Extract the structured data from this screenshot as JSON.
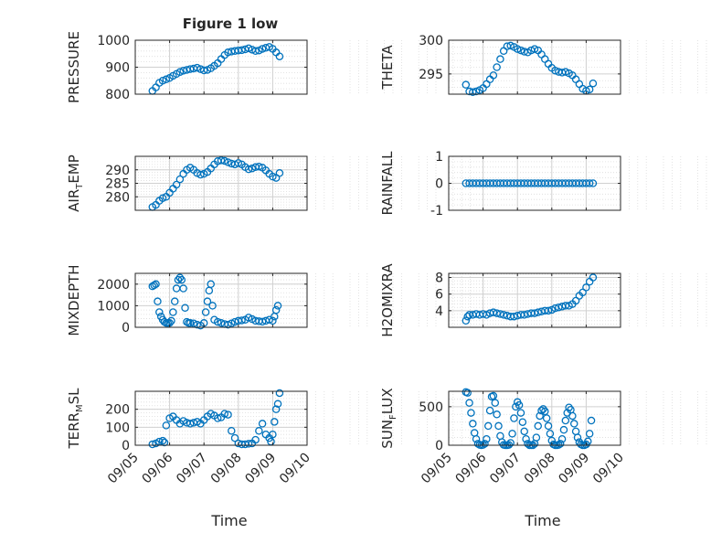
{
  "figure_title": "Figure 1 low",
  "xlabels": [
    "Time",
    "Time"
  ],
  "chart_data": [
    {
      "type": "scatter",
      "ylabel": "PRESSURE",
      "ylim": [
        800,
        1000
      ],
      "yticks": [
        "800",
        "900",
        "1000"
      ],
      "xticks": [],
      "grid": "on",
      "color": "#0072bd",
      "x": [
        5.5,
        5.6,
        5.7,
        5.8,
        5.9,
        6.0,
        6.1,
        6.2,
        6.3,
        6.4,
        6.5,
        6.6,
        6.7,
        6.8,
        6.9,
        7.0,
        7.1,
        7.2,
        7.3,
        7.4,
        7.5,
        7.6,
        7.7,
        7.8,
        7.9,
        8.0,
        8.1,
        8.2,
        8.3,
        8.4,
        8.5,
        8.6,
        8.7,
        8.8,
        8.9,
        9.0,
        9.1,
        9.2
      ],
      "y": [
        812,
        825,
        842,
        850,
        855,
        860,
        868,
        875,
        882,
        887,
        890,
        893,
        895,
        898,
        893,
        888,
        890,
        896,
        905,
        915,
        930,
        945,
        955,
        958,
        960,
        962,
        963,
        966,
        970,
        965,
        960,
        962,
        968,
        972,
        975,
        968,
        955,
        940
      ]
    },
    {
      "type": "scatter",
      "ylabel": "THETA",
      "ylim": [
        292,
        300
      ],
      "yticks": [
        "295",
        "300"
      ],
      "xticks": [],
      "grid": "on",
      "color": "#0072bd",
      "x": [
        5.5,
        5.6,
        5.7,
        5.8,
        5.9,
        6.0,
        6.1,
        6.2,
        6.3,
        6.4,
        6.5,
        6.6,
        6.7,
        6.8,
        6.9,
        7.0,
        7.1,
        7.2,
        7.3,
        7.4,
        7.5,
        7.6,
        7.7,
        7.8,
        7.9,
        8.0,
        8.1,
        8.2,
        8.3,
        8.4,
        8.5,
        8.6,
        8.7,
        8.8,
        8.9,
        9.0,
        9.1,
        9.2
      ],
      "y": [
        293.4,
        292.4,
        292.3,
        292.4,
        292.6,
        292.9,
        293.5,
        294.2,
        294.8,
        296.0,
        297.2,
        298.4,
        299.1,
        299.2,
        299.0,
        298.7,
        298.5,
        298.3,
        298.2,
        298.5,
        298.7,
        298.5,
        297.9,
        297.2,
        296.5,
        295.9,
        295.5,
        295.3,
        295.2,
        295.3,
        295.1,
        294.8,
        294.2,
        293.5,
        292.8,
        292.5,
        292.7,
        293.6
      ]
    },
    {
      "type": "scatter",
      "ylabel": "AIR",
      "ylabel_sub": "T",
      "ylabel_rest": "EMP",
      "ylim": [
        275,
        295
      ],
      "yticks": [
        "280",
        "285",
        "290"
      ],
      "xticks": [],
      "grid": "on",
      "color": "#0072bd",
      "x": [
        5.5,
        5.6,
        5.7,
        5.8,
        5.9,
        6.0,
        6.1,
        6.2,
        6.3,
        6.4,
        6.5,
        6.6,
        6.7,
        6.8,
        6.9,
        7.0,
        7.1,
        7.2,
        7.3,
        7.4,
        7.5,
        7.6,
        7.7,
        7.8,
        7.9,
        8.0,
        8.1,
        8.2,
        8.3,
        8.4,
        8.5,
        8.6,
        8.7,
        8.8,
        8.9,
        9.0,
        9.1,
        9.2
      ],
      "y": [
        276.2,
        277.0,
        278.5,
        279.5,
        280.0,
        281.5,
        283.0,
        284.5,
        286.5,
        288.5,
        290.0,
        290.8,
        290.0,
        288.8,
        288.2,
        288.5,
        289.2,
        290.5,
        292.0,
        293.2,
        293.5,
        293.3,
        292.8,
        292.3,
        292.0,
        292.5,
        292.0,
        291.0,
        290.2,
        290.5,
        291.0,
        291.2,
        290.8,
        289.8,
        288.5,
        287.5,
        287.0,
        288.8
      ]
    },
    {
      "type": "scatter",
      "ylabel": "RAINFALL",
      "ylim": [
        -1,
        1
      ],
      "yticks": [
        "-1",
        "0",
        "1"
      ],
      "xticks": [],
      "grid": "on",
      "color": "#0072bd",
      "x": [
        5.5,
        5.6,
        5.7,
        5.8,
        5.9,
        6.0,
        6.1,
        6.2,
        6.3,
        6.4,
        6.5,
        6.6,
        6.7,
        6.8,
        6.9,
        7.0,
        7.1,
        7.2,
        7.3,
        7.4,
        7.5,
        7.6,
        7.7,
        7.8,
        7.9,
        8.0,
        8.1,
        8.2,
        8.3,
        8.4,
        8.5,
        8.6,
        8.7,
        8.8,
        8.9,
        9.0,
        9.1,
        9.2
      ],
      "y": [
        0,
        0,
        0,
        0,
        0,
        0,
        0,
        0,
        0,
        0,
        0,
        0,
        0,
        0,
        0,
        0,
        0,
        0,
        0,
        0,
        0,
        0,
        0,
        0,
        0,
        0,
        0,
        0,
        0,
        0,
        0,
        0,
        0,
        0,
        0,
        0,
        0,
        0
      ]
    },
    {
      "type": "scatter",
      "ylabel": "MIXDEPTH",
      "ylim": [
        0,
        2500
      ],
      "yticks": [
        "0",
        "1000",
        "2000"
      ],
      "xticks": [],
      "grid": "on",
      "color": "#0072bd",
      "x": [
        5.5,
        5.55,
        5.6,
        5.65,
        5.7,
        5.75,
        5.8,
        5.85,
        5.9,
        5.95,
        6.0,
        6.05,
        6.1,
        6.15,
        6.2,
        6.25,
        6.3,
        6.35,
        6.4,
        6.45,
        6.5,
        6.55,
        6.6,
        6.7,
        6.8,
        6.9,
        7.0,
        7.05,
        7.1,
        7.15,
        7.2,
        7.25,
        7.3,
        7.4,
        7.5,
        7.6,
        7.7,
        7.8,
        7.9,
        8.0,
        8.1,
        8.2,
        8.3,
        8.4,
        8.5,
        8.6,
        8.7,
        8.8,
        8.9,
        9.0,
        9.05,
        9.1,
        9.15
      ],
      "y": [
        1900,
        1950,
        2000,
        1200,
        700,
        500,
        350,
        250,
        200,
        200,
        200,
        300,
        700,
        1200,
        1800,
        2200,
        2300,
        2200,
        1800,
        900,
        250,
        200,
        200,
        180,
        120,
        80,
        200,
        700,
        1200,
        1700,
        2000,
        1000,
        350,
        250,
        200,
        150,
        120,
        180,
        250,
        300,
        320,
        350,
        450,
        380,
        300,
        280,
        260,
        300,
        350,
        300,
        500,
        800,
        1000
      ]
    },
    {
      "type": "scatter",
      "ylabel": "H2OMIXRA",
      "ylim": [
        2,
        8.5
      ],
      "yticks": [
        "4",
        "6",
        "8"
      ],
      "xticks": [],
      "grid": "on",
      "color": "#0072bd",
      "x": [
        5.5,
        5.55,
        5.6,
        5.7,
        5.8,
        5.9,
        6.0,
        6.1,
        6.2,
        6.3,
        6.4,
        6.5,
        6.6,
        6.7,
        6.8,
        6.9,
        7.0,
        7.1,
        7.2,
        7.3,
        7.4,
        7.5,
        7.6,
        7.7,
        7.8,
        7.9,
        8.0,
        8.1,
        8.2,
        8.3,
        8.4,
        8.5,
        8.6,
        8.7,
        8.8,
        8.9,
        9.0,
        9.1,
        9.2
      ],
      "y": [
        2.8,
        3.3,
        3.5,
        3.5,
        3.6,
        3.5,
        3.6,
        3.5,
        3.7,
        3.8,
        3.7,
        3.6,
        3.5,
        3.4,
        3.3,
        3.3,
        3.4,
        3.5,
        3.5,
        3.6,
        3.7,
        3.7,
        3.8,
        3.9,
        4.0,
        4.0,
        4.1,
        4.3,
        4.4,
        4.5,
        4.6,
        4.6,
        4.8,
        5.2,
        5.8,
        6.2,
        6.8,
        7.5,
        8.0
      ]
    },
    {
      "type": "scatter",
      "ylabel": "TERR",
      "ylabel_sub": "M",
      "ylabel_rest": "SL",
      "ylim": [
        0,
        300
      ],
      "yticks": [
        "0",
        "100",
        "200"
      ],
      "xticks": [
        "09/05",
        "09/06",
        "09/07",
        "09/08",
        "09/09",
        "09/10"
      ],
      "grid": "on",
      "color": "#0072bd",
      "x": [
        5.5,
        5.6,
        5.7,
        5.8,
        5.85,
        5.9,
        6.0,
        6.1,
        6.2,
        6.3,
        6.4,
        6.5,
        6.6,
        6.7,
        6.8,
        6.9,
        7.0,
        7.1,
        7.2,
        7.3,
        7.4,
        7.5,
        7.6,
        7.7,
        7.8,
        7.9,
        8.0,
        8.1,
        8.2,
        8.3,
        8.4,
        8.5,
        8.6,
        8.7,
        8.8,
        8.9,
        8.95,
        9.0,
        9.05,
        9.1,
        9.15,
        9.2
      ],
      "y": [
        5,
        10,
        20,
        25,
        15,
        110,
        150,
        160,
        140,
        120,
        135,
        125,
        120,
        125,
        130,
        120,
        140,
        160,
        175,
        165,
        150,
        155,
        175,
        170,
        80,
        40,
        10,
        5,
        5,
        8,
        10,
        30,
        80,
        120,
        60,
        40,
        20,
        60,
        130,
        200,
        230,
        290
      ]
    },
    {
      "type": "scatter",
      "ylabel": "SUN",
      "ylabel_sub": "F",
      "ylabel_rest": "LUX",
      "ylim": [
        0,
        700
      ],
      "yticks": [
        "0",
        "500"
      ],
      "xticks": [
        "09/05",
        "09/06",
        "09/07",
        "09/08",
        "09/09",
        "09/10"
      ],
      "grid": "on",
      "color": "#0072bd",
      "x": [
        5.5,
        5.55,
        5.6,
        5.65,
        5.7,
        5.75,
        5.8,
        5.85,
        5.9,
        5.95,
        6.0,
        6.05,
        6.1,
        6.15,
        6.2,
        6.25,
        6.3,
        6.35,
        6.4,
        6.45,
        6.5,
        6.55,
        6.6,
        6.65,
        6.7,
        6.75,
        6.8,
        6.85,
        6.9,
        6.95,
        7.0,
        7.05,
        7.1,
        7.15,
        7.2,
        7.25,
        7.3,
        7.35,
        7.4,
        7.45,
        7.5,
        7.55,
        7.6,
        7.65,
        7.7,
        7.75,
        7.8,
        7.85,
        7.9,
        7.95,
        8.0,
        8.05,
        8.1,
        8.15,
        8.2,
        8.25,
        8.3,
        8.35,
        8.4,
        8.45,
        8.5,
        8.55,
        8.6,
        8.65,
        8.7,
        8.75,
        8.8,
        8.85,
        8.9,
        8.95,
        9.0,
        9.05,
        9.1,
        9.15
      ],
      "y": [
        690,
        680,
        550,
        420,
        280,
        160,
        80,
        20,
        5,
        0,
        5,
        20,
        80,
        250,
        450,
        630,
        640,
        550,
        400,
        250,
        120,
        40,
        5,
        0,
        0,
        5,
        30,
        150,
        350,
        500,
        560,
        520,
        420,
        300,
        180,
        80,
        20,
        0,
        0,
        0,
        20,
        100,
        250,
        380,
        450,
        470,
        440,
        350,
        250,
        150,
        60,
        10,
        0,
        0,
        5,
        20,
        80,
        200,
        320,
        420,
        490,
        460,
        380,
        280,
        180,
        100,
        40,
        10,
        0,
        0,
        10,
        50,
        150,
        320
      ]
    }
  ]
}
